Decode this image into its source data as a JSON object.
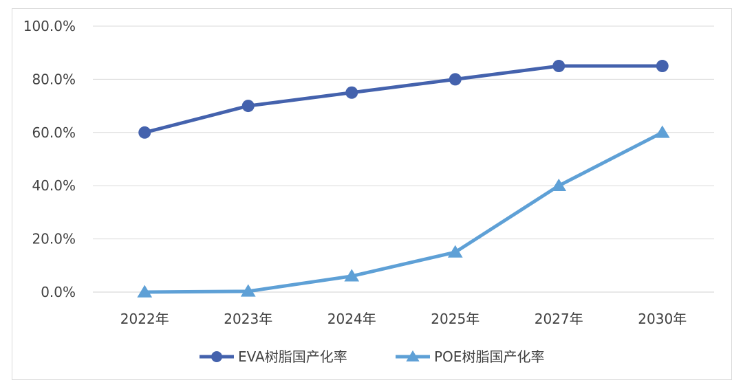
{
  "chart_data": {
    "type": "line",
    "categories": [
      "2022年",
      "2023年",
      "2024年",
      "2025年",
      "2027年",
      "2030年"
    ],
    "series": [
      {
        "name": "EVA树脂国产化率",
        "values": [
          60,
          70,
          75,
          80,
          85,
          85
        ],
        "color": "#4462ad",
        "marker": "circle"
      },
      {
        "name": "POE树脂国产化率",
        "values": [
          0,
          0.3,
          6,
          15,
          40,
          60
        ],
        "color": "#5ea0d6",
        "marker": "triangle"
      }
    ],
    "y_ticks": [
      "0.0%",
      "20.0%",
      "40.0%",
      "60.0%",
      "80.0%",
      "100.0%"
    ],
    "ylim": [
      0,
      100
    ],
    "y_unit": "%",
    "grid": true,
    "legend_position": "bottom",
    "title": "",
    "xlabel": "",
    "ylabel": ""
  }
}
